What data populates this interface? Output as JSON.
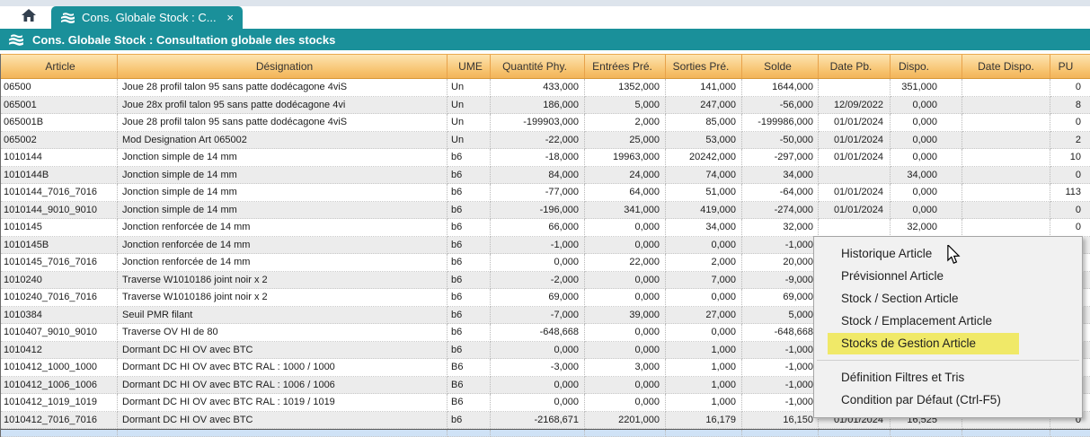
{
  "colors": {
    "teal": "#1a909a",
    "header_top": "#fde4b0",
    "header_bottom": "#f2b45a",
    "menu_highlight": "#f0e968",
    "alt_row": "#ececec",
    "selected_strip": "#cfe2f6"
  },
  "chrome": {
    "home_tab": {
      "icon": "home-icon"
    },
    "active_tab": {
      "icon": "stock-icon",
      "label": "Cons. Globale Stock : C...",
      "close_glyph": "×"
    },
    "title_bar": {
      "icon": "stock-icon",
      "title": "Cons. Globale Stock : Consultation globale des stocks"
    }
  },
  "table": {
    "columns": [
      {
        "key": "article",
        "label": "Article"
      },
      {
        "key": "designation",
        "label": "Désignation"
      },
      {
        "key": "ume",
        "label": "UME"
      },
      {
        "key": "qty",
        "label": "Quantité Phy."
      },
      {
        "key": "entrees",
        "label": "Entrées Pré."
      },
      {
        "key": "sorties",
        "label": "Sorties Pré."
      },
      {
        "key": "solde",
        "label": "Solde"
      },
      {
        "key": "date_pb",
        "label": "Date Pb."
      },
      {
        "key": "dispo",
        "label": "Dispo."
      },
      {
        "key": "date_dispo",
        "label": "Date Dispo."
      },
      {
        "key": "pu",
        "label": "PU"
      }
    ],
    "rows": [
      {
        "article": "06500",
        "designation": "Joue 28 profil talon 95 sans patte dodécagone 4viS",
        "ume": "Un",
        "qty": "433,000",
        "entrees": "1352,000",
        "sorties": "141,000",
        "solde": "1644,000",
        "date_pb": "",
        "dispo": "351,000",
        "date_dispo": "",
        "pu": "0"
      },
      {
        "article": "065001",
        "designation": "Joue 28x profil talon 95 sans patte dodécagone 4vi",
        "ume": "Un",
        "qty": "186,000",
        "entrees": "5,000",
        "sorties": "247,000",
        "solde": "-56,000",
        "date_pb": "12/09/2022",
        "dispo": "0,000",
        "date_dispo": "",
        "pu": "8"
      },
      {
        "article": "065001B",
        "designation": "Joue 28 profil talon 95 sans patte dodécagone 4viS",
        "ume": "Un",
        "qty": "-199903,000",
        "entrees": "2,000",
        "sorties": "85,000",
        "solde": "-199986,000",
        "date_pb": "01/01/2024",
        "dispo": "0,000",
        "date_dispo": "",
        "pu": "0"
      },
      {
        "article": "065002",
        "designation": "Mod Designation Art 065002",
        "ume": "Un",
        "qty": "-22,000",
        "entrees": "25,000",
        "sorties": "53,000",
        "solde": "-50,000",
        "date_pb": "01/01/2024",
        "dispo": "0,000",
        "date_dispo": "",
        "pu": "2"
      },
      {
        "article": "1010144",
        "designation": "Jonction simple de 14 mm",
        "ume": "b6",
        "qty": "-18,000",
        "entrees": "19963,000",
        "sorties": "20242,000",
        "solde": "-297,000",
        "date_pb": "01/01/2024",
        "dispo": "0,000",
        "date_dispo": "",
        "pu": "10"
      },
      {
        "article": "1010144B",
        "designation": "Jonction simple de 14 mm",
        "ume": "b6",
        "qty": "84,000",
        "entrees": "24,000",
        "sorties": "74,000",
        "solde": "34,000",
        "date_pb": "",
        "dispo": "34,000",
        "date_dispo": "",
        "pu": "0"
      },
      {
        "article": "1010144_7016_7016",
        "designation": "Jonction simple de 14 mm",
        "ume": "b6",
        "qty": "-77,000",
        "entrees": "64,000",
        "sorties": "51,000",
        "solde": "-64,000",
        "date_pb": "01/01/2024",
        "dispo": "0,000",
        "date_dispo": "",
        "pu": "113"
      },
      {
        "article": "1010144_9010_9010",
        "designation": "Jonction simple de 14 mm",
        "ume": "b6",
        "qty": "-196,000",
        "entrees": "341,000",
        "sorties": "419,000",
        "solde": "-274,000",
        "date_pb": "01/01/2024",
        "dispo": "0,000",
        "date_dispo": "",
        "pu": "0"
      },
      {
        "article": "1010145",
        "designation": "Jonction renforcée de 14 mm",
        "ume": "b6",
        "qty": "66,000",
        "entrees": "0,000",
        "sorties": "34,000",
        "solde": "32,000",
        "date_pb": "",
        "dispo": "32,000",
        "date_dispo": "",
        "pu": "0"
      },
      {
        "article": "1010145B",
        "designation": "Jonction renforcée de 14 mm",
        "ume": "b6",
        "qty": "-1,000",
        "entrees": "0,000",
        "sorties": "0,000",
        "solde": "-1,000",
        "date_pb": "",
        "dispo": "",
        "date_dispo": "",
        "pu": ""
      },
      {
        "article": "1010145_7016_7016",
        "designation": "Jonction renforcée de 14 mm",
        "ume": "b6",
        "qty": "0,000",
        "entrees": "22,000",
        "sorties": "2,000",
        "solde": "20,000",
        "date_pb": "",
        "dispo": "",
        "date_dispo": "",
        "pu": ""
      },
      {
        "article": "1010240",
        "designation": "Traverse W1010186 joint noir x 2",
        "ume": "b6",
        "qty": "-2,000",
        "entrees": "0,000",
        "sorties": "7,000",
        "solde": "-9,000",
        "date_pb": "",
        "dispo": "",
        "date_dispo": "",
        "pu": ""
      },
      {
        "article": "1010240_7016_7016",
        "designation": "Traverse W1010186 joint noir x 2",
        "ume": "b6",
        "qty": "69,000",
        "entrees": "0,000",
        "sorties": "0,000",
        "solde": "69,000",
        "date_pb": "",
        "dispo": "",
        "date_dispo": "",
        "pu": ""
      },
      {
        "article": "1010384",
        "designation": "Seuil PMR filant",
        "ume": "b6",
        "qty": "-7,000",
        "entrees": "39,000",
        "sorties": "27,000",
        "solde": "5,000",
        "date_pb": "",
        "dispo": "",
        "date_dispo": "",
        "pu": ""
      },
      {
        "article": "1010407_9010_9010",
        "designation": "Traverse OV HI de 80",
        "ume": "b6",
        "qty": "-648,668",
        "entrees": "0,000",
        "sorties": "0,000",
        "solde": "-648,668",
        "date_pb": "",
        "dispo": "",
        "date_dispo": "",
        "pu": ""
      },
      {
        "article": "1010412",
        "designation": "Dormant DC HI OV avec BTC",
        "ume": "b6",
        "qty": "0,000",
        "entrees": "0,000",
        "sorties": "1,000",
        "solde": "-1,000",
        "date_pb": "",
        "dispo": "",
        "date_dispo": "",
        "pu": ""
      },
      {
        "article": "1010412_1000_1000",
        "designation": "Dormant DC HI OV avec BTC RAL : 1000 / 1000",
        "ume": "B6",
        "qty": "-3,000",
        "entrees": "3,000",
        "sorties": "1,000",
        "solde": "-1,000",
        "date_pb": "",
        "dispo": "",
        "date_dispo": "",
        "pu": ""
      },
      {
        "article": "1010412_1006_1006",
        "designation": "Dormant DC HI OV avec BTC RAL : 1006 / 1006",
        "ume": "B6",
        "qty": "0,000",
        "entrees": "0,000",
        "sorties": "1,000",
        "solde": "-1,000",
        "date_pb": "",
        "dispo": "",
        "date_dispo": "",
        "pu": ""
      },
      {
        "article": "1010412_1019_1019",
        "designation": "Dormant DC HI OV avec BTC RAL : 1019 / 1019",
        "ume": "B6",
        "qty": "0,000",
        "entrees": "0,000",
        "sorties": "1,000",
        "solde": "-1,000",
        "date_pb": "",
        "dispo": "",
        "date_dispo": "",
        "pu": ""
      },
      {
        "article": "1010412_7016_7016",
        "designation": "Dormant DC HI OV avec BTC",
        "ume": "b6",
        "qty": "-2168,671",
        "entrees": "2201,000",
        "sorties": "16,179",
        "solde": "16,150",
        "date_pb": "01/01/2024",
        "dispo": "16,525",
        "date_dispo": "",
        "pu": "0"
      }
    ]
  },
  "context_menu": {
    "items": [
      {
        "label": "Historique Article"
      },
      {
        "label": "Prévisionnel Article"
      },
      {
        "label": "Stock / Section Article"
      },
      {
        "label": "Stock / Emplacement Article"
      },
      {
        "label": "Stocks de Gestion Article",
        "highlighted": true
      },
      {
        "separator": true
      },
      {
        "label": "Définition Filtres et Tris"
      },
      {
        "label": "Condition par Défaut (Ctrl-F5)"
      }
    ]
  }
}
